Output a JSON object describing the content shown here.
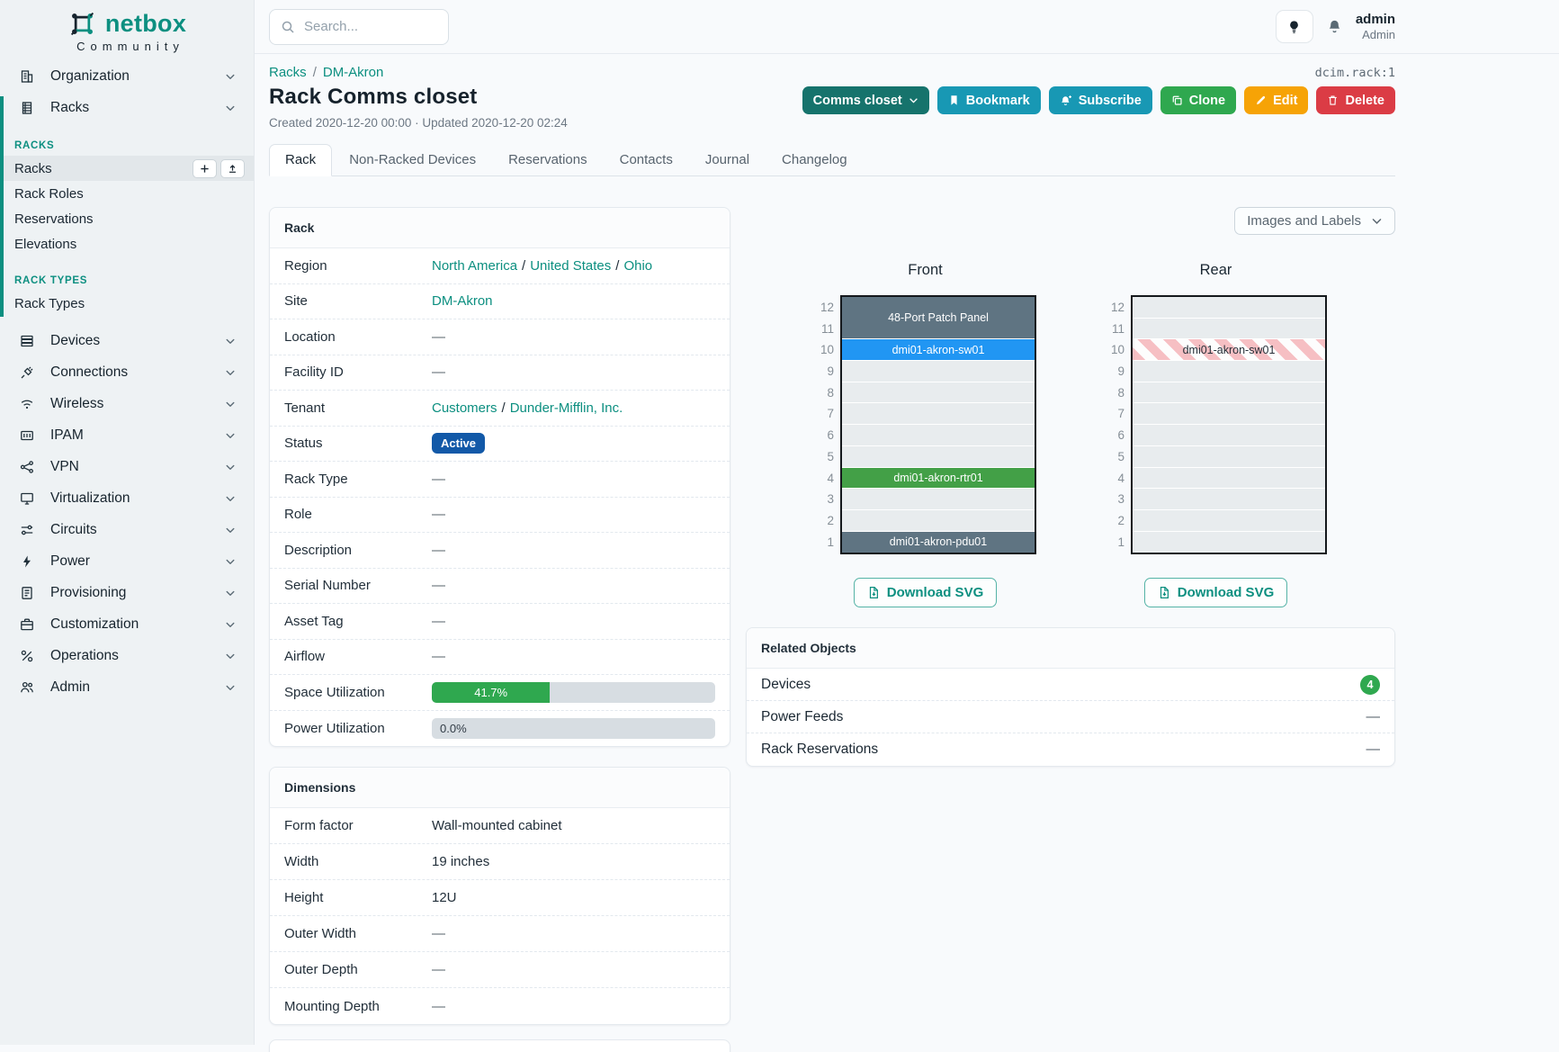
{
  "colors": {
    "brand_teal": "#0c8f80",
    "status_active_blue": "#1259a8",
    "utilization_green": "#2fa84f",
    "device_slate": "#5f7482",
    "device_blue": "#2196f3",
    "device_green": "#43a047",
    "rear_face_stripe_pink": "#f6bfc3",
    "button_cyan": "#1898b4",
    "button_green": "#2fa84f",
    "button_orange": "#f6a306",
    "button_red": "#db3c45",
    "button_teal_dark": "#16736c"
  },
  "brand": {
    "name": "netbox",
    "tagline": "Community"
  },
  "topbar": {
    "search_placeholder": "Search...",
    "username": "admin",
    "role": "Admin"
  },
  "sidebar": {
    "items": [
      {
        "label": "Organization"
      },
      {
        "label": "Racks"
      },
      {
        "label": "Devices"
      },
      {
        "label": "Connections"
      },
      {
        "label": "Wireless"
      },
      {
        "label": "IPAM"
      },
      {
        "label": "VPN"
      },
      {
        "label": "Virtualization"
      },
      {
        "label": "Circuits"
      },
      {
        "label": "Power"
      },
      {
        "label": "Provisioning"
      },
      {
        "label": "Customization"
      },
      {
        "label": "Operations"
      },
      {
        "label": "Admin"
      }
    ],
    "section_racks": {
      "label": "RACKS",
      "items": [
        "Racks",
        "Rack Roles",
        "Reservations",
        "Elevations"
      ]
    },
    "section_rack_types": {
      "label": "RACK TYPES",
      "items": [
        "Rack Types"
      ]
    }
  },
  "page": {
    "breadcrumb": [
      "Racks",
      "DM-Akron"
    ],
    "breadcrumb_separator": "/",
    "object_id": "dcim.rack:1",
    "title": "Rack Comms closet",
    "meta": "Created 2020-12-20 00:00 · Updated 2020-12-20 02:24",
    "actions": {
      "device_menu": "Comms closet",
      "bookmark": "Bookmark",
      "subscribe": "Subscribe",
      "clone": "Clone",
      "edit": "Edit",
      "delete": "Delete"
    },
    "tabs": [
      "Rack",
      "Non-Racked Devices",
      "Reservations",
      "Contacts",
      "Journal",
      "Changelog"
    ]
  },
  "rack_panel": {
    "title": "Rack",
    "separator": "/",
    "region_label": "Region",
    "region_links": [
      "North America",
      "United States",
      "Ohio"
    ],
    "site_label": "Site",
    "site_link": "DM-Akron",
    "location_label": "Location",
    "location_value": "—",
    "facility_label": "Facility ID",
    "facility_value": "—",
    "tenant_label": "Tenant",
    "tenant_links": [
      "Customers",
      "Dunder-Mifflin, Inc."
    ],
    "status_label": "Status",
    "status_value": "Active",
    "rack_type_label": "Rack Type",
    "rack_type_value": "—",
    "role_label": "Role",
    "role_value": "—",
    "description_label": "Description",
    "description_value": "—",
    "serial_label": "Serial Number",
    "serial_value": "—",
    "asset_label": "Asset Tag",
    "asset_value": "—",
    "airflow_label": "Airflow",
    "airflow_value": "—",
    "space_label": "Space Utilization",
    "space_text": "41.7%",
    "space_percent": 41.7,
    "power_label": "Power Utilization",
    "power_text": "0.0%",
    "power_percent": 0
  },
  "dimensions_panel": {
    "title": "Dimensions",
    "rows": [
      {
        "label": "Form factor",
        "value": "Wall-mounted cabinet"
      },
      {
        "label": "Width",
        "value": "19 inches"
      },
      {
        "label": "Height",
        "value": "12U"
      },
      {
        "label": "Outer Width",
        "value": "—"
      },
      {
        "label": "Outer Depth",
        "value": "—"
      },
      {
        "label": "Mounting Depth",
        "value": "—"
      }
    ]
  },
  "elevation": {
    "view_menu": "Images and Labels",
    "front_label": "Front",
    "rear_label": "Rear",
    "download_label": "Download SVG",
    "unit_numbers": [
      "12",
      "11",
      "10",
      "9",
      "8",
      "7",
      "6",
      "5",
      "4",
      "3",
      "2",
      "1"
    ],
    "front_devices": [
      {
        "name": "48-Port Patch Panel",
        "top_unit": 12,
        "height_u": 2
      },
      {
        "name": "dmi01-akron-sw01",
        "top_unit": 10,
        "height_u": 1
      },
      {
        "name": "dmi01-akron-rtr01",
        "top_unit": 4,
        "height_u": 1
      },
      {
        "name": "dmi01-akron-pdu01",
        "top_unit": 1,
        "height_u": 1
      }
    ],
    "rear_devices": [
      {
        "name": "dmi01-akron-sw01",
        "top_unit": 10,
        "height_u": 1
      }
    ]
  },
  "related_panel": {
    "title": "Related Objects",
    "rows": [
      {
        "label": "Devices",
        "count": "4"
      },
      {
        "label": "Power Feeds",
        "value": "—"
      },
      {
        "label": "Rack Reservations",
        "value": "—"
      }
    ]
  }
}
